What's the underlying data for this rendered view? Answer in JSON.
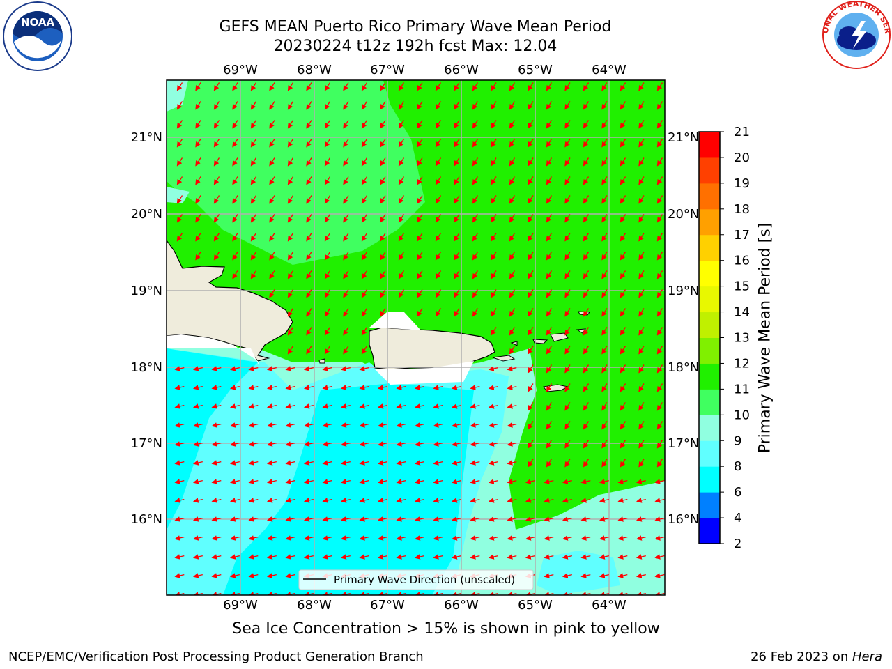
{
  "header": {
    "title_line1": "GEFS MEAN Puerto Rico Primary Wave Mean Period",
    "title_line2": "20230224 t12z 192h fcst   Max: 12.04"
  },
  "logos": {
    "left": "noaa-logo",
    "right": "national-weather-service-logo",
    "left_text": "NOAA",
    "right_text": "NATIONAL WEATHER SERVICE"
  },
  "map": {
    "lon_ticks": [
      "69°W",
      "68°W",
      "67°W",
      "66°W",
      "65°W",
      "64°W"
    ],
    "lat_ticks": [
      "21°N",
      "20°N",
      "19°N",
      "18°N",
      "17°N",
      "16°N"
    ],
    "legend_label": "Primary Wave Direction (unscaled)",
    "arrow_color": "#ff0000",
    "land_color": "#efecdc",
    "coast_color": "#000000",
    "grid_color": "#b0b0b0"
  },
  "colorbar": {
    "label": "Primary Wave Mean Period [s]",
    "ticks": [
      "2",
      "4",
      "6",
      "8",
      "9",
      "10",
      "11",
      "12",
      "13",
      "14",
      "15",
      "16",
      "17",
      "18",
      "19",
      "20",
      "21"
    ],
    "colors": [
      "#0000ff",
      "#0080ff",
      "#00ffff",
      "#60ffff",
      "#90ffe0",
      "#40ff60",
      "#20f000",
      "#80f000",
      "#c0f000",
      "#e8f800",
      "#ffff00",
      "#ffd000",
      "#ffa000",
      "#ff7000",
      "#ff4000",
      "#ff0000"
    ]
  },
  "footer": {
    "ice_note": "Sea Ice Concentration > 15% is shown in pink to yellow",
    "left": "NCEP/EMC/Verification Post Processing Product Generation Branch",
    "right_prefix": "26 Feb 2023 on ",
    "right_machine": "Hera"
  }
}
